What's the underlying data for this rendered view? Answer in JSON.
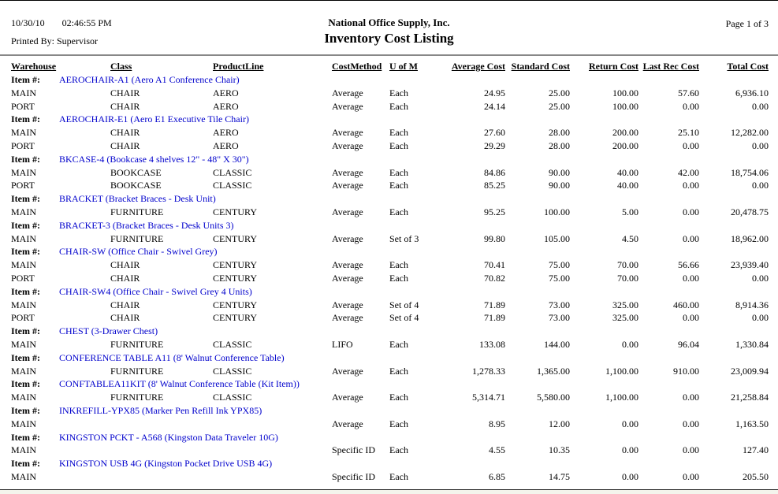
{
  "page": {
    "date": "10/30/10",
    "time": "02:46:55 PM",
    "printed_by": "Printed By: Supervisor",
    "company": "National Office Supply, Inc.",
    "report_title": "Inventory Cost Listing",
    "page_info": "Page 1 of 3"
  },
  "colors": {
    "link_blue": "#0000CC",
    "rule_gray": "#888888"
  },
  "table": {
    "item_label": "Item #:",
    "columns": [
      "Warehouse",
      "Class",
      "ProductLine",
      "CostMethod",
      "U of M",
      "Average Cost",
      "Standard Cost",
      "Return Cost",
      "Last Rec Cost",
      "Total Cost"
    ],
    "groups": [
      {
        "item": "AEROCHAIR-A1 (Aero A1 Conference Chair)",
        "rows": [
          [
            "MAIN",
            "CHAIR",
            "AERO",
            "Average",
            "Each",
            "24.95",
            "25.00",
            "100.00",
            "57.60",
            "6,936.10"
          ],
          [
            "PORT",
            "CHAIR",
            "AERO",
            "Average",
            "Each",
            "24.14",
            "25.00",
            "100.00",
            "0.00",
            "0.00"
          ]
        ]
      },
      {
        "item": "AEROCHAIR-E1 (Aero E1 Executive Tile Chair)",
        "rows": [
          [
            "MAIN",
            "CHAIR",
            "AERO",
            "Average",
            "Each",
            "27.60",
            "28.00",
            "200.00",
            "25.10",
            "12,282.00"
          ],
          [
            "PORT",
            "CHAIR",
            "AERO",
            "Average",
            "Each",
            "29.29",
            "28.00",
            "200.00",
            "0.00",
            "0.00"
          ]
        ]
      },
      {
        "item": "BKCASE-4 (Bookcase 4 shelves 12\" - 48\" X 30\")",
        "rows": [
          [
            "MAIN",
            "BOOKCASE",
            "CLASSIC",
            "Average",
            "Each",
            "84.86",
            "90.00",
            "40.00",
            "42.00",
            "18,754.06"
          ],
          [
            "PORT",
            "BOOKCASE",
            "CLASSIC",
            "Average",
            "Each",
            "85.25",
            "90.00",
            "40.00",
            "0.00",
            "0.00"
          ]
        ]
      },
      {
        "item": "BRACKET (Bracket Braces - Desk Unit)",
        "rows": [
          [
            "MAIN",
            "FURNITURE",
            "CENTURY",
            "Average",
            "Each",
            "95.25",
            "100.00",
            "5.00",
            "0.00",
            "20,478.75"
          ]
        ]
      },
      {
        "item": "BRACKET-3 (Bracket Braces - Desk Units 3)",
        "rows": [
          [
            "MAIN",
            "FURNITURE",
            "CENTURY",
            "Average",
            "Set of 3",
            "99.80",
            "105.00",
            "4.50",
            "0.00",
            "18,962.00"
          ]
        ]
      },
      {
        "item": "CHAIR-SW (Office Chair - Swivel Grey)",
        "rows": [
          [
            "MAIN",
            "CHAIR",
            "CENTURY",
            "Average",
            "Each",
            "70.41",
            "75.00",
            "70.00",
            "56.66",
            "23,939.40"
          ],
          [
            "PORT",
            "CHAIR",
            "CENTURY",
            "Average",
            "Each",
            "70.82",
            "75.00",
            "70.00",
            "0.00",
            "0.00"
          ]
        ]
      },
      {
        "item": "CHAIR-SW4 (Office Chair - Swivel Grey 4 Units)",
        "rows": [
          [
            "MAIN",
            "CHAIR",
            "CENTURY",
            "Average",
            "Set of 4",
            "71.89",
            "73.00",
            "325.00",
            "460.00",
            "8,914.36"
          ],
          [
            "PORT",
            "CHAIR",
            "CENTURY",
            "Average",
            "Set of 4",
            "71.89",
            "73.00",
            "325.00",
            "0.00",
            "0.00"
          ]
        ]
      },
      {
        "item": "CHEST (3-Drawer Chest)",
        "rows": [
          [
            "MAIN",
            "FURNITURE",
            "CLASSIC",
            "LIFO",
            "Each",
            "133.08",
            "144.00",
            "0.00",
            "96.04",
            "1,330.84"
          ]
        ]
      },
      {
        "item": "CONFERENCE TABLE A11 (8' Walnut Conference Table)",
        "rows": [
          [
            "MAIN",
            "FURNITURE",
            "CLASSIC",
            "Average",
            "Each",
            "1,278.33",
            "1,365.00",
            "1,100.00",
            "910.00",
            "23,009.94"
          ]
        ]
      },
      {
        "item": "CONFTABLEA11KIT (8' Walnut Conference Table (Kit Item))",
        "rows": [
          [
            "MAIN",
            "FURNITURE",
            "CLASSIC",
            "Average",
            "Each",
            "5,314.71",
            "5,580.00",
            "1,100.00",
            "0.00",
            "21,258.84"
          ]
        ]
      },
      {
        "item": "INKREFILL-YPX85 (Marker Pen Refill Ink YPX85)",
        "rows": [
          [
            "MAIN",
            "",
            "",
            "Average",
            "Each",
            "8.95",
            "12.00",
            "0.00",
            "0.00",
            "1,163.50"
          ]
        ]
      },
      {
        "item": "KINGSTON PCKT - A568 (Kingston Data Traveler 10G)",
        "rows": [
          [
            "MAIN",
            "",
            "",
            "Specific ID",
            "Each",
            "4.55",
            "10.35",
            "0.00",
            "0.00",
            "127.40"
          ]
        ]
      },
      {
        "item": "KINGSTON USB 4G (Kingston Pocket Drive USB 4G)",
        "rows": [
          [
            "MAIN",
            "",
            "",
            "Specific ID",
            "Each",
            "6.85",
            "14.75",
            "0.00",
            "0.00",
            "205.50"
          ]
        ]
      }
    ]
  }
}
